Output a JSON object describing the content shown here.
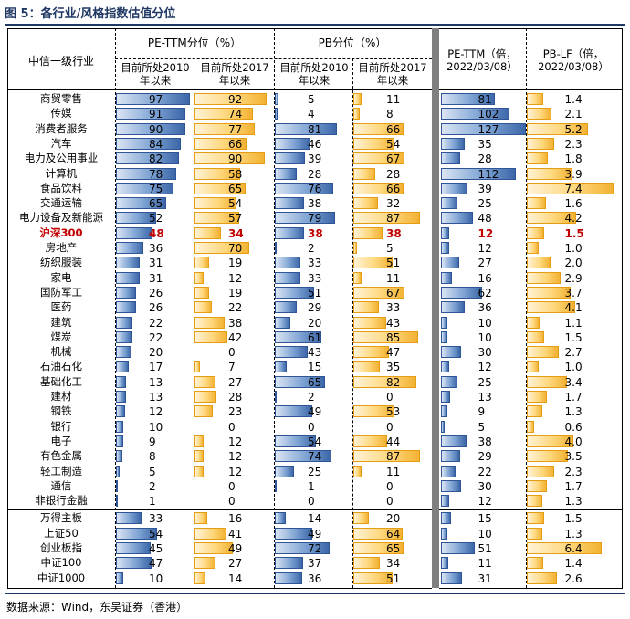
{
  "figure_title": "图 5：各行业/风格指数估值分位",
  "source": "数据来源：Wind，东吴证券（香港）",
  "headers": {
    "row_header": "中信一级行业",
    "pe_group": "PE-TTM分位（%）",
    "pb_group": "PB分位（%）",
    "sub_2010": "目前所处2010年以来",
    "sub_2017": "目前所处2017年以来",
    "pe_ttm": "PE-TTM（倍，2022/03/08）",
    "pb_lf": "PB-LF（倍，2022/03/08）"
  },
  "colors": {
    "blue": "#2f5597",
    "orange": "#f2b233",
    "highlight": "#c00000",
    "title": "#1f3864"
  },
  "chart_data": {
    "type": "table",
    "columns": [
      "PE-TTM分位 2010年以来",
      "PE-TTM分位 2017年以来",
      "PB分位 2010年以来",
      "PB分位 2017年以来",
      "PE-TTM(倍,2022/03/08)",
      "PB-LF(倍,2022/03/08)"
    ],
    "bar_scale_max": {
      "pe_pct": 100,
      "pb_pct": 100,
      "pe": 127,
      "pb": 7.4
    },
    "rows": [
      {
        "name": "商贸零售",
        "pe2010": 97,
        "pe2017": 92,
        "pb2010": 5,
        "pb2017": 11,
        "pe": 81,
        "pb": 1.4
      },
      {
        "name": "传媒",
        "pe2010": 91,
        "pe2017": 74,
        "pb2010": 4,
        "pb2017": 8,
        "pe": 102,
        "pb": 2.1
      },
      {
        "name": "消费者服务",
        "pe2010": 90,
        "pe2017": 77,
        "pb2010": 81,
        "pb2017": 66,
        "pe": 127,
        "pb": 5.2
      },
      {
        "name": "汽车",
        "pe2010": 84,
        "pe2017": 66,
        "pb2010": 46,
        "pb2017": 54,
        "pe": 35,
        "pb": 2.3
      },
      {
        "name": "电力及公用事业",
        "pe2010": 82,
        "pe2017": 90,
        "pb2010": 39,
        "pb2017": 67,
        "pe": 28,
        "pb": 1.8
      },
      {
        "name": "计算机",
        "pe2010": 78,
        "pe2017": 58,
        "pb2010": 28,
        "pb2017": 28,
        "pe": 112,
        "pb": 3.9
      },
      {
        "name": "食品饮料",
        "pe2010": 75,
        "pe2017": 65,
        "pb2010": 76,
        "pb2017": 66,
        "pe": 39,
        "pb": 7.4
      },
      {
        "name": "交通运输",
        "pe2010": 65,
        "pe2017": 54,
        "pb2010": 38,
        "pb2017": 32,
        "pe": 25,
        "pb": 1.6
      },
      {
        "name": "电力设备及新能源",
        "pe2010": 52,
        "pe2017": 57,
        "pb2010": 79,
        "pb2017": 87,
        "pe": 48,
        "pb": 4.2
      },
      {
        "name": "沪深300",
        "pe2010": 48,
        "pe2017": 34,
        "pb2010": 38,
        "pb2017": 38,
        "pe": 12,
        "pb": 1.5,
        "highlight": true
      },
      {
        "name": "房地产",
        "pe2010": 36,
        "pe2017": 70,
        "pb2010": 2,
        "pb2017": 5,
        "pe": 12,
        "pb": 1.0
      },
      {
        "name": "纺织服装",
        "pe2010": 31,
        "pe2017": 19,
        "pb2010": 33,
        "pb2017": 51,
        "pe": 27,
        "pb": 2.0
      },
      {
        "name": "家电",
        "pe2010": 31,
        "pe2017": 12,
        "pb2010": 33,
        "pb2017": 11,
        "pe": 16,
        "pb": 2.9
      },
      {
        "name": "国防军工",
        "pe2010": 26,
        "pe2017": 19,
        "pb2010": 51,
        "pb2017": 67,
        "pe": 62,
        "pb": 3.7
      },
      {
        "name": "医药",
        "pe2010": 26,
        "pe2017": 22,
        "pb2010": 29,
        "pb2017": 33,
        "pe": 36,
        "pb": 4.1
      },
      {
        "name": "建筑",
        "pe2010": 22,
        "pe2017": 38,
        "pb2010": 20,
        "pb2017": 43,
        "pe": 10,
        "pb": 1.1
      },
      {
        "name": "煤炭",
        "pe2010": 22,
        "pe2017": 42,
        "pb2010": 61,
        "pb2017": 85,
        "pe": 10,
        "pb": 1.5
      },
      {
        "name": "机械",
        "pe2010": 20,
        "pe2017": 0,
        "pb2010": 43,
        "pb2017": 47,
        "pe": 30,
        "pb": 2.7
      },
      {
        "name": "石油石化",
        "pe2010": 17,
        "pe2017": 7,
        "pb2010": 15,
        "pb2017": 35,
        "pe": 12,
        "pb": 1.0
      },
      {
        "name": "基础化工",
        "pe2010": 13,
        "pe2017": 27,
        "pb2010": 65,
        "pb2017": 82,
        "pe": 25,
        "pb": 3.4
      },
      {
        "name": "建材",
        "pe2010": 13,
        "pe2017": 28,
        "pb2010": 2,
        "pb2017": 0,
        "pe": 13,
        "pb": 1.7
      },
      {
        "name": "钢铁",
        "pe2010": 12,
        "pe2017": 23,
        "pb2010": 49,
        "pb2017": 53,
        "pe": 9,
        "pb": 1.3
      },
      {
        "name": "银行",
        "pe2010": 10,
        "pe2017": 0,
        "pb2010": 0,
        "pb2017": 0,
        "pe": 5,
        "pb": 0.6
      },
      {
        "name": "电子",
        "pe2010": 9,
        "pe2017": 12,
        "pb2010": 54,
        "pb2017": 44,
        "pe": 38,
        "pb": 4.0
      },
      {
        "name": "有色金属",
        "pe2010": 8,
        "pe2017": 12,
        "pb2010": 74,
        "pb2017": 87,
        "pe": 29,
        "pb": 3.5
      },
      {
        "name": "轻工制造",
        "pe2010": 5,
        "pe2017": 12,
        "pb2010": 25,
        "pb2017": 11,
        "pe": 22,
        "pb": 2.3
      },
      {
        "name": "通信",
        "pe2010": 2,
        "pe2017": 0,
        "pb2010": 1,
        "pb2017": 0,
        "pe": 30,
        "pb": 1.7
      },
      {
        "name": "非银行金融",
        "pe2010": 1,
        "pe2017": 0,
        "pb2010": 0,
        "pb2017": 0,
        "pe": 12,
        "pb": 1.3
      },
      {
        "name": "万得主板",
        "pe2010": 33,
        "pe2017": 16,
        "pb2010": 14,
        "pb2017": 20,
        "pe": 15,
        "pb": 1.5
      },
      {
        "name": "上证50",
        "pe2010": 54,
        "pe2017": 41,
        "pb2010": 49,
        "pb2017": 64,
        "pe": 10,
        "pb": 1.3
      },
      {
        "name": "创业板指",
        "pe2010": 45,
        "pe2017": 49,
        "pb2010": 72,
        "pb2017": 65,
        "pe": 51,
        "pb": 6.4
      },
      {
        "name": "中证100",
        "pe2010": 47,
        "pe2017": 27,
        "pb2010": 37,
        "pb2017": 34,
        "pe": 11,
        "pb": 1.4
      },
      {
        "name": "中证1000",
        "pe2010": 10,
        "pe2017": 14,
        "pb2010": 36,
        "pb2017": 51,
        "pe": 31,
        "pb": 2.6
      }
    ]
  }
}
